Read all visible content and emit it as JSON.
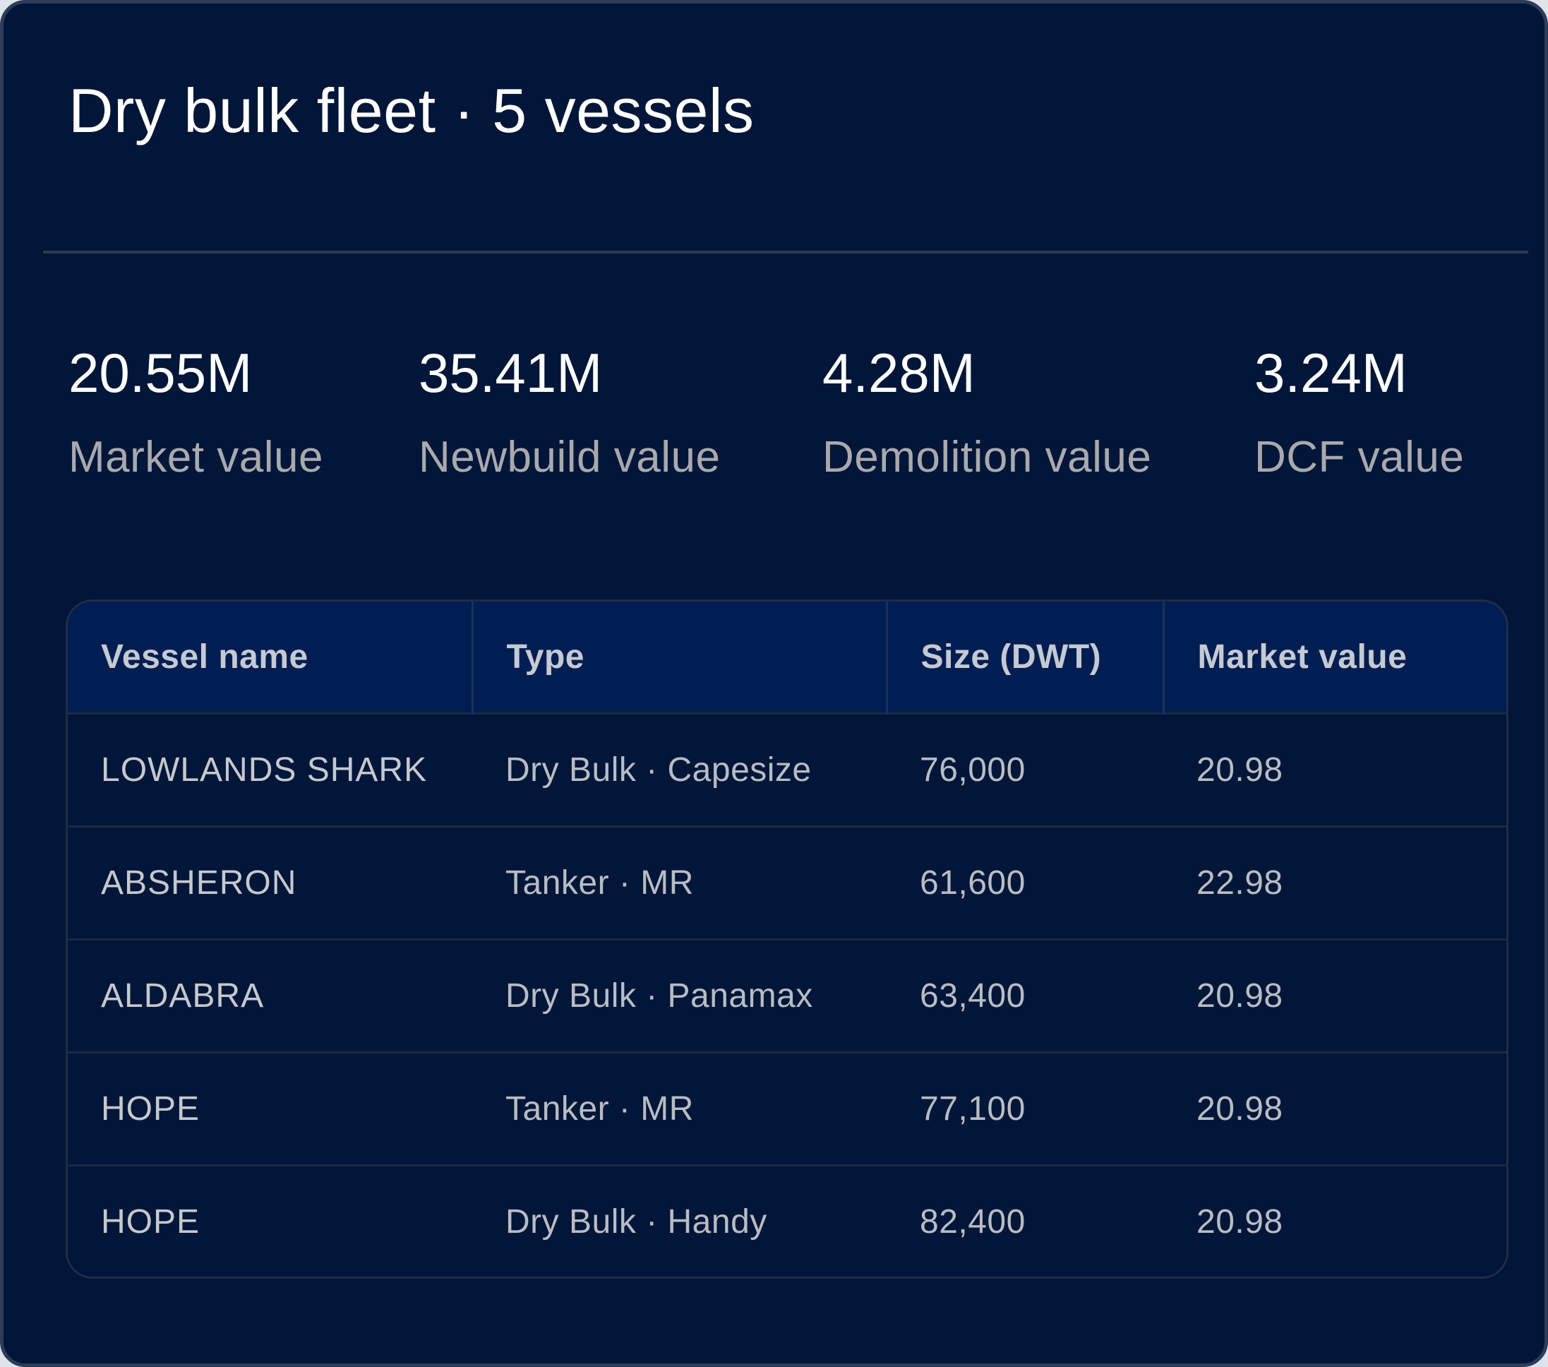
{
  "header": {
    "title": "Dry bulk fleet · 5 vessels"
  },
  "stats": [
    {
      "value": "20.55M",
      "label": "Market value"
    },
    {
      "value": "35.41M",
      "label": "Newbuild value"
    },
    {
      "value": "4.28M",
      "label": "Demolition value"
    },
    {
      "value": "3.24M",
      "label": "DCF value"
    }
  ],
  "table": {
    "columns": [
      "Vessel name",
      "Type",
      "Size (DWT)",
      "Market value"
    ],
    "rows": [
      {
        "name": "LOWLANDS SHARK",
        "type": "Dry Bulk · Capesize",
        "size": "76,000",
        "value": "20.98"
      },
      {
        "name": "ABSHERON",
        "type": "Tanker · MR",
        "size": "61,600",
        "value": "22.98"
      },
      {
        "name": "ALDABRA",
        "type": "Dry Bulk · Panamax",
        "size": "63,400",
        "value": "20.98"
      },
      {
        "name": "HOPE",
        "type": "Tanker · MR",
        "size": "77,100",
        "value": "20.98"
      },
      {
        "name": "HOPE",
        "type": "Dry Bulk · Handy",
        "size": "82,400",
        "value": "20.98"
      }
    ]
  },
  "colors": {
    "background": "#011638",
    "header_row": "#011e52",
    "text_primary": "#ffffff",
    "text_muted": "#a9a9ad"
  }
}
